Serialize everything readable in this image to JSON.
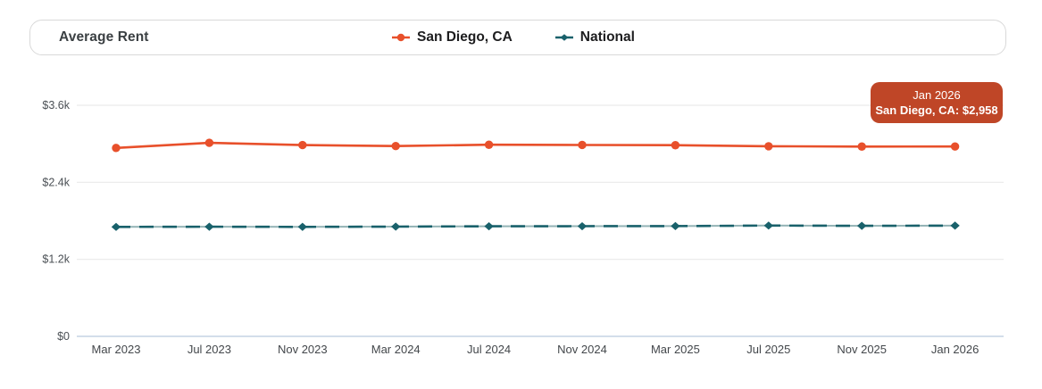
{
  "header": {
    "title": "Average Rent"
  },
  "tooltip": {
    "line1": "Jan 2026",
    "line2": "San Diego, CA: $2,958",
    "bg_color": "#bf4627",
    "text_color": "#ffffff"
  },
  "chart_data": {
    "type": "line",
    "title": "Average Rent",
    "xlabel": "",
    "ylabel": "",
    "grid": true,
    "legend_position": "top",
    "grid_color": "#e9eaea",
    "zero_axis_color": "#b9cbde",
    "x_labels": [
      "Mar 2023",
      "Jul 2023",
      "Nov 2023",
      "Mar 2024",
      "Jul 2024",
      "Nov 2024",
      "Mar 2025",
      "Jul 2025",
      "Nov 2025",
      "Jan 2026"
    ],
    "y_axis": {
      "ticks": [
        {
          "label": "$3.6k",
          "value": 3600
        },
        {
          "label": "$2.4k",
          "value": 2400
        },
        {
          "label": "$1.2k",
          "value": 1200
        },
        {
          "label": "$0",
          "value": 0
        }
      ],
      "ylim": [
        0,
        3600
      ]
    },
    "series": [
      {
        "name": "San Diego, CA",
        "color": "#e8502b",
        "line_style": "solid",
        "marker": "circle",
        "values": [
          2935,
          3015,
          2980,
          2965,
          2985,
          2982,
          2978,
          2962,
          2957,
          2958
        ]
      },
      {
        "name": "National",
        "color": "#19616b",
        "underlay_color": "#93b3b5",
        "line_style": "dashed",
        "marker": "diamond",
        "values": [
          1705,
          1708,
          1706,
          1710,
          1715,
          1716,
          1718,
          1726,
          1722,
          1725
        ]
      }
    ],
    "highlighted_point": {
      "series": "San Diego, CA",
      "x_label": "Jan 2026",
      "value": 2958
    }
  }
}
